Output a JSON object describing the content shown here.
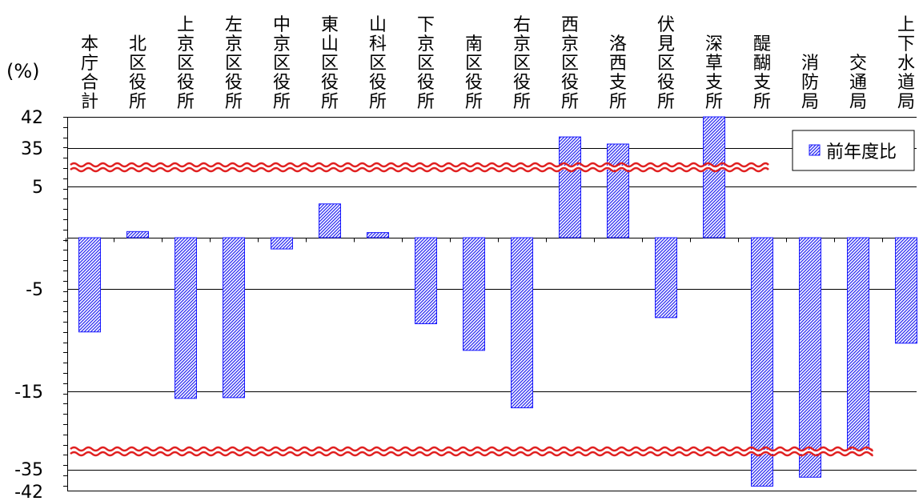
{
  "chart_data": {
    "type": "bar",
    "unit_label": "(%)",
    "categories": [
      "本庁合計",
      "北区役所",
      "上京区役所",
      "左京区役所",
      "中京区役所",
      "東山区役所",
      "山科区役所",
      "下京区役所",
      "南区役所",
      "右京区役所",
      "西京区役所",
      "洛西支所",
      "伏見区役所",
      "深草支所",
      "醍醐支所",
      "消防局",
      "交通局",
      "上下水道局"
    ],
    "series": [
      {
        "name": "前年度比",
        "values": [
          -9.2,
          0.6,
          -16.8,
          -16.6,
          -1.1,
          3.3,
          0.5,
          -8.4,
          -11.0,
          -19.2,
          37.5,
          35.9,
          -7.8,
          42.0,
          -40.5,
          -37.5,
          -30.5,
          -10.3
        ]
      }
    ],
    "y_tick_labels": [
      "42",
      "35",
      "5",
      "-5",
      "-15",
      "-35",
      "-42"
    ],
    "axis_breaks": [
      {
        "from": 5.0,
        "to": 31.0
      },
      {
        "from": -35.0,
        "to": -15.0
      }
    ],
    "ylim": [
      -42,
      42
    ],
    "grid": true,
    "legend_position": "top-right",
    "colors": {
      "bar_stroke": "#1a1aff",
      "bar_hatch": "#2a2af0",
      "axis": "#000000",
      "gridline": "#000000",
      "break_mark": "#e02020",
      "background": "#ffffff"
    }
  }
}
